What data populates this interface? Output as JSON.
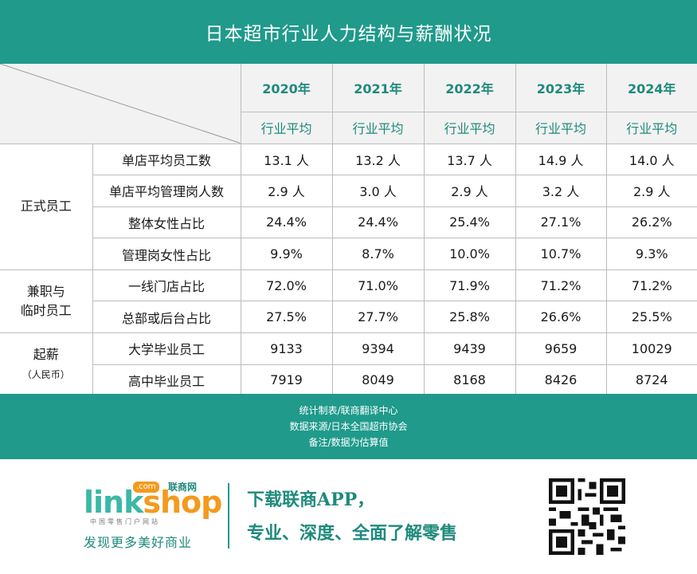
{
  "title": "日本超市行业人力结构与薪酬状况",
  "years": [
    "2020年",
    "2021年",
    "2022年",
    "2023年",
    "2024年"
  ],
  "subheader": "行业平均",
  "groups": {
    "regular": "正式员工",
    "parttime_1": "兼职与",
    "parttime_2": "临时员工",
    "salary": "起薪",
    "salary_unit": "（人民币）"
  },
  "rows": [
    {
      "label": "单店平均员工数",
      "values": [
        "13.1 人",
        "13.2 人",
        "13.7 人",
        "14.9 人",
        "14.0 人"
      ]
    },
    {
      "label": "单店平均管理岗人数",
      "values": [
        "2.9 人",
        "3.0 人",
        "2.9 人",
        "3.2 人",
        "2.9 人"
      ]
    },
    {
      "label": "整体女性占比",
      "values": [
        "24.4%",
        "24.4%",
        "25.4%",
        "27.1%",
        "26.2%"
      ]
    },
    {
      "label": "管理岗女性占比",
      "values": [
        "9.9%",
        "8.7%",
        "10.0%",
        "10.7%",
        "9.3%"
      ]
    },
    {
      "label": "一线门店占比",
      "values": [
        "72.0%",
        "71.0%",
        "71.9%",
        "71.2%",
        "71.2%"
      ]
    },
    {
      "label": "总部或后台占比",
      "values": [
        "27.5%",
        "27.7%",
        "25.8%",
        "26.6%",
        "25.5%"
      ]
    },
    {
      "label": "大学毕业员工",
      "values": [
        "9133",
        "9394",
        "9439",
        "9659",
        "10029"
      ]
    },
    {
      "label": "高中毕业员工",
      "values": [
        "7919",
        "8049",
        "8168",
        "8426",
        "8724"
      ]
    }
  ],
  "notes": [
    "统计制表/联商翻译中心",
    "数据来源/日本全国超市协会",
    "备注/数据为估算值"
  ],
  "promo": {
    "logo_main": "link",
    "logo_k": "shop",
    "logo_com": ".com",
    "logo_name": "联商网",
    "logo_sub": "中国零售门户网站",
    "slogan": "发现更多美好商业",
    "line1": "下载联商APP，",
    "line2": "专业、深度、全面了解零售"
  },
  "colors": {
    "accent": "#1f9a8b",
    "orange": "#f39a1e"
  }
}
